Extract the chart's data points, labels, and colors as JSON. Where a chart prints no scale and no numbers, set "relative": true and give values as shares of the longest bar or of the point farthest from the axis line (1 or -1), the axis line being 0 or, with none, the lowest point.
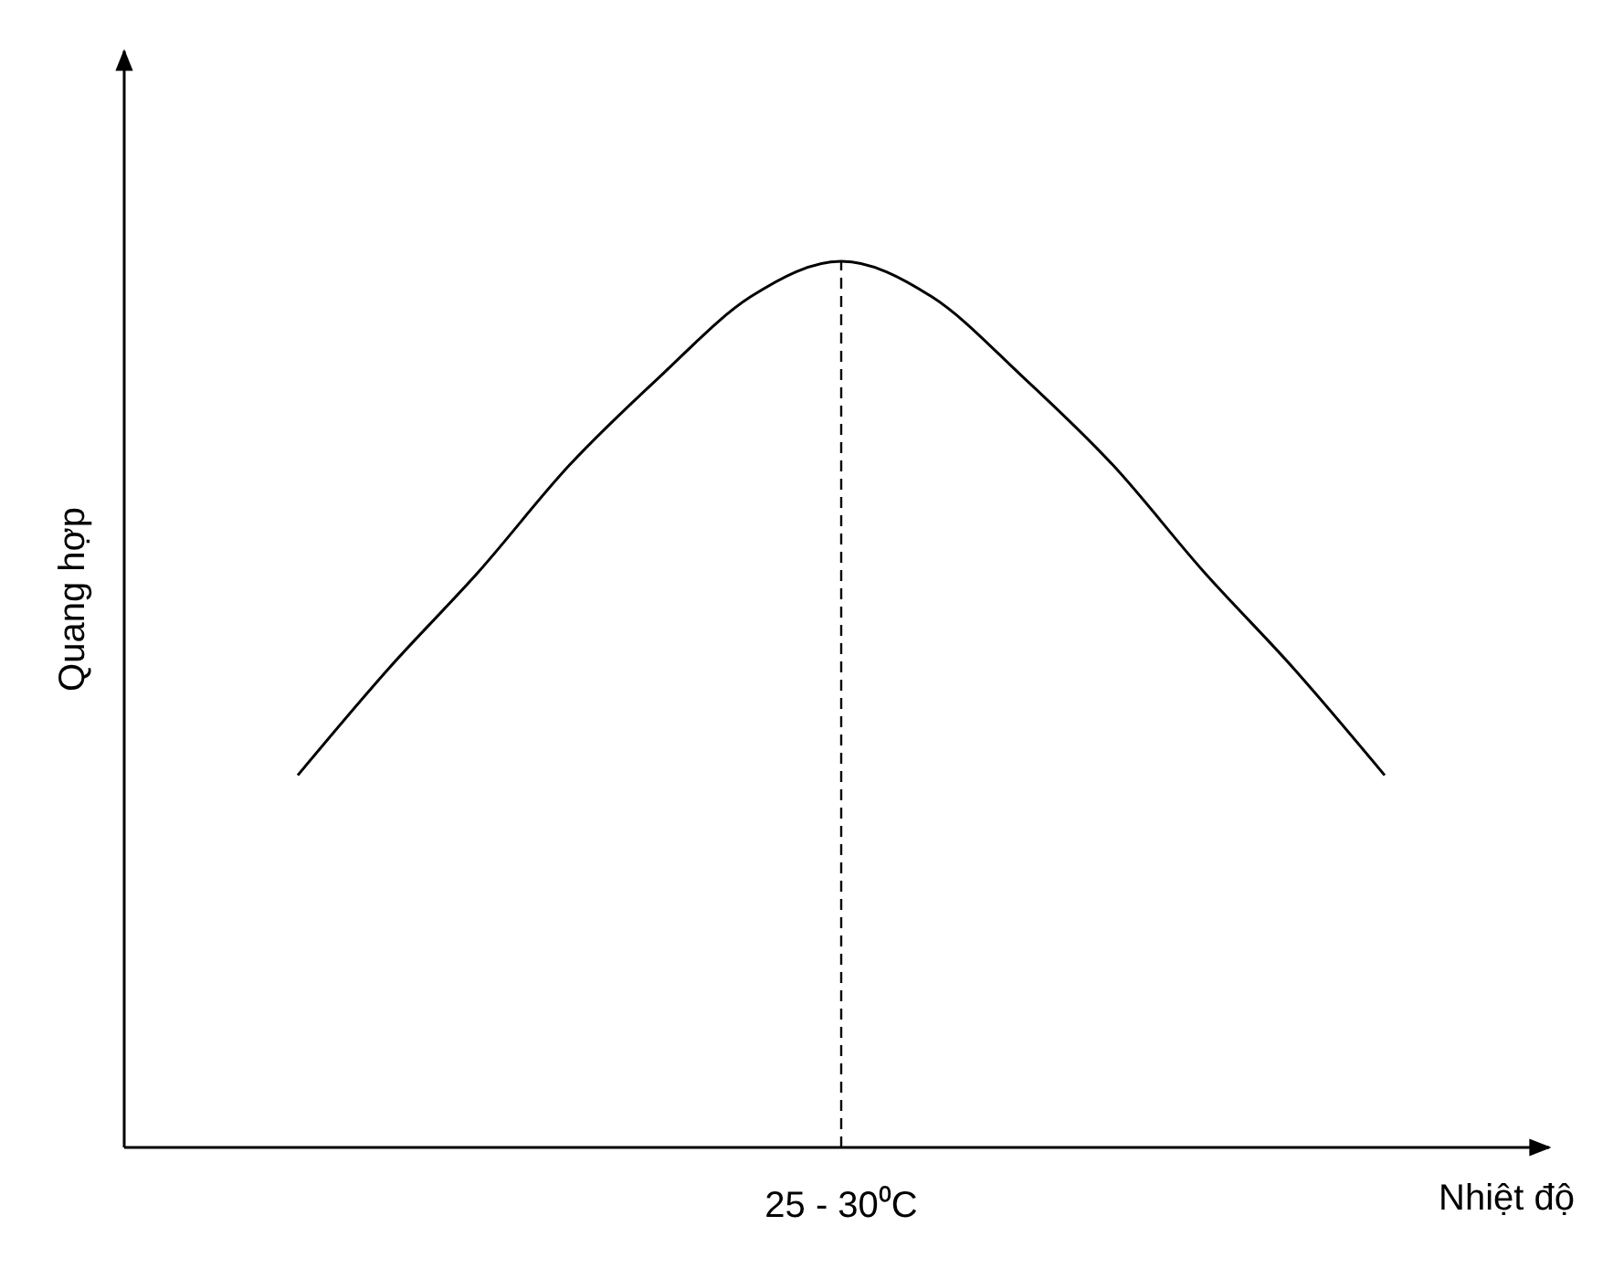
{
  "chart_data": {
    "type": "line",
    "relative": true,
    "xlabel": "Nhiệt độ",
    "ylabel": "Quang hợp",
    "categories": [
      null,
      null,
      null,
      null,
      null,
      null,
      null,
      null,
      null,
      null,
      null,
      null,
      null
    ],
    "values": [
      0.42,
      0.54,
      0.65,
      0.77,
      0.87,
      0.96,
      1,
      0.96,
      0.87,
      0.77,
      0.65,
      0.54,
      0.42
    ],
    "color": "#000000",
    "annotations": [
      "25 - 30⁰C"
    ]
  }
}
